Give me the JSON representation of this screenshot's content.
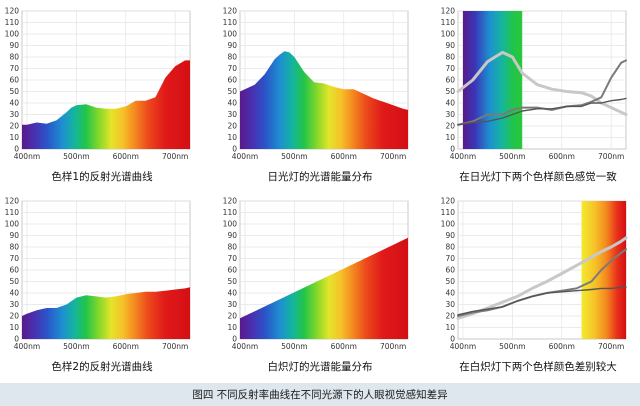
{
  "caption": "图四 不同反射率曲线在不同光源下的人眼视觉感知差异",
  "colors": {
    "caption_bg": "#dfe7ee",
    "curve_light": "#c8c8c8",
    "curve_mid": "#7a7a7a",
    "curve_dark": "#555555"
  },
  "chart_data": [
    {
      "type": "area",
      "title": "色样1的反射光谱曲线",
      "x_tick_labels": [
        "400nm",
        "500nm",
        "600nm",
        "700nm"
      ],
      "y_tick_labels": [
        0,
        10,
        20,
        30,
        40,
        50,
        60,
        70,
        80,
        90,
        100,
        110,
        120
      ],
      "xlim": [
        390,
        730
      ],
      "ylim": [
        0,
        120
      ],
      "grid": true,
      "x": [
        390,
        400,
        420,
        440,
        460,
        480,
        490,
        500,
        520,
        540,
        560,
        580,
        600,
        620,
        640,
        660,
        680,
        700,
        720,
        730
      ],
      "values": [
        21,
        21,
        23,
        22,
        25,
        32,
        36,
        38,
        39,
        36,
        35,
        35,
        37,
        42,
        42,
        45,
        62,
        72,
        77,
        77
      ]
    },
    {
      "type": "area",
      "title": "日光灯的光谱能量分布",
      "x_tick_labels": [
        "400nm",
        "500nm",
        "600nm",
        "700nm"
      ],
      "y_tick_labels": [
        0,
        10,
        20,
        30,
        40,
        50,
        60,
        70,
        80,
        90,
        100,
        110,
        120
      ],
      "xlim": [
        390,
        730
      ],
      "ylim": [
        0,
        120
      ],
      "grid": true,
      "x": [
        390,
        400,
        420,
        440,
        460,
        470,
        480,
        490,
        500,
        520,
        540,
        560,
        580,
        600,
        620,
        640,
        660,
        680,
        700,
        720,
        730
      ],
      "values": [
        50,
        52,
        56,
        65,
        78,
        82,
        85,
        84,
        80,
        67,
        58,
        57,
        54,
        52,
        52,
        48,
        44,
        41,
        38,
        35,
        34
      ]
    },
    {
      "type": "line",
      "title": "在日光灯下两个色样颜色感觉一致",
      "x_tick_labels": [
        "400nm",
        "500nm",
        "600nm",
        "700nm"
      ],
      "y_tick_labels": [
        0,
        10,
        20,
        30,
        40,
        50,
        60,
        70,
        80,
        90,
        100,
        110,
        120
      ],
      "xlim": [
        390,
        730
      ],
      "ylim": [
        0,
        120
      ],
      "grid": true,
      "spectrum_band": [
        400,
        520
      ],
      "x": [
        390,
        420,
        450,
        480,
        500,
        520,
        550,
        580,
        610,
        640,
        660,
        680,
        700,
        720,
        730
      ],
      "series": [
        {
          "values": [
            50,
            60,
            76,
            84,
            80,
            66,
            56,
            52,
            50,
            49,
            46,
            40,
            36,
            32,
            30
          ]
        },
        {
          "values": [
            21,
            24,
            30,
            30,
            34,
            36,
            36,
            34,
            37,
            38,
            41,
            45,
            62,
            75,
            77
          ]
        },
        {
          "values": [
            21,
            23,
            24,
            27,
            30,
            33,
            35,
            35,
            37,
            37,
            40,
            40,
            42,
            43,
            44
          ]
        }
      ]
    },
    {
      "type": "area",
      "title": "色样2的反射光谱曲线",
      "x_tick_labels": [
        "400nm",
        "500nm",
        "600nm",
        "700nm"
      ],
      "y_tick_labels": [
        0,
        10,
        20,
        30,
        40,
        50,
        60,
        70,
        80,
        90,
        100,
        110,
        120
      ],
      "xlim": [
        390,
        730
      ],
      "ylim": [
        0,
        120
      ],
      "grid": true,
      "x": [
        390,
        400,
        420,
        440,
        460,
        480,
        500,
        520,
        540,
        560,
        580,
        600,
        620,
        640,
        660,
        680,
        700,
        720,
        730
      ],
      "values": [
        20,
        22,
        25,
        27,
        27,
        30,
        36,
        38,
        37,
        36,
        37,
        39,
        40,
        41,
        41,
        42,
        43,
        44,
        45
      ]
    },
    {
      "type": "area",
      "title": "白炽灯的光谱能量分布",
      "x_tick_labels": [
        "400nm",
        "500nm",
        "600nm",
        "700nm"
      ],
      "y_tick_labels": [
        0,
        10,
        20,
        30,
        40,
        50,
        60,
        70,
        80,
        90,
        100,
        110,
        120
      ],
      "xlim": [
        390,
        730
      ],
      "ylim": [
        0,
        120
      ],
      "grid": true,
      "x": [
        390,
        730
      ],
      "values": [
        18,
        88
      ]
    },
    {
      "type": "line",
      "title": "在白炽灯下两个色样颜色差别较大",
      "x_tick_labels": [
        "400nm",
        "500nm",
        "600nm",
        "700nm"
      ],
      "y_tick_labels": [
        0,
        10,
        20,
        30,
        40,
        50,
        60,
        70,
        80,
        90,
        100,
        110,
        120
      ],
      "xlim": [
        390,
        730
      ],
      "ylim": [
        0,
        120
      ],
      "grid": true,
      "spectrum_band": [
        640,
        730
      ],
      "x": [
        390,
        420,
        450,
        480,
        510,
        540,
        570,
        600,
        630,
        660,
        680,
        700,
        720,
        730
      ],
      "series": [
        {
          "values": [
            18,
            22,
            27,
            32,
            37,
            44,
            50,
            57,
            64,
            71,
            76,
            80,
            85,
            88
          ]
        },
        {
          "values": [
            20,
            23,
            25,
            28,
            33,
            37,
            40,
            42,
            44,
            50,
            60,
            68,
            75,
            78
          ]
        },
        {
          "values": [
            21,
            24,
            26,
            28,
            33,
            37,
            40,
            41,
            42,
            43,
            44,
            44,
            45,
            45
          ]
        }
      ]
    }
  ]
}
